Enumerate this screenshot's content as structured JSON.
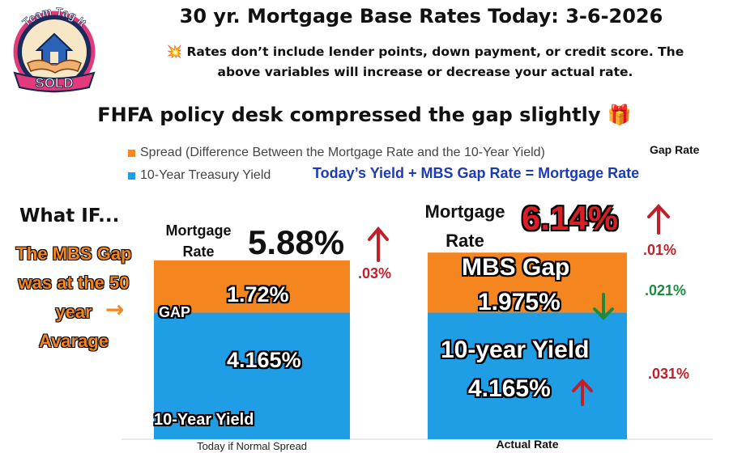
{
  "header": {
    "title": "30 yr. Mortgage Base Rates Today: 3-6-2026",
    "disclaimer_icon": "💥",
    "disclaimer_line1": "Rates don’t include lender points, down payment, or credit score. The",
    "disclaimer_line2": "above variables will increase or decrease your actual rate.",
    "subtitle": "FHFA policy desk compressed the gap slightly",
    "subtitle_icon": "🎁"
  },
  "logo": {
    "top_text": "Team Tag It",
    "banner_text": "SOLD"
  },
  "legend": {
    "spread_label": "Spread (Difference Between the Mortgage Rate and the 10-Year Yield)",
    "treasury_label": "10-Year Treasury Yield",
    "gap_rate_label": "Gap Rate",
    "formula": "Today’s  Yield +  MBS Gap Rate = Mortgage Rate"
  },
  "left_panel": {
    "what_if": "What IF...",
    "note_lines": [
      "The MBS Gap",
      "was at the 50",
      "year",
      "Avarage"
    ],
    "arrow": "→",
    "mortgage_rate_label_1": "Mortgage",
    "mortgage_rate_label_2": "Rate",
    "mortgage_rate_value": "5.88%",
    "change": ".03%",
    "gap_label": "GAP",
    "gap_value": "1.72%",
    "yield_value": "4.165%",
    "yield_label": "10-Year Yield",
    "x_label": "Today if Normal Spread"
  },
  "right_panel": {
    "mortgage_rate_label_1": "Mortgage",
    "mortgage_rate_label_2": "Rate",
    "mortgage_rate_value": "6.14%",
    "rate_change": ".01%",
    "gap_title": "MBS Gap",
    "gap_value": "1.975%",
    "gap_change": ".021%",
    "yield_title": "10-year Yield",
    "yield_value": "4.165%",
    "yield_change": ".031%",
    "x_label": "Actual Rate"
  },
  "colors": {
    "spread": "#f5861f",
    "treasury": "#1f9ee6",
    "accent_red": "#c0202a",
    "accent_green": "#1e8a3e",
    "formula_blue": "#1c3bb5"
  },
  "chart_data": {
    "type": "bar",
    "stacked": true,
    "categories": [
      "Today if Normal Spread",
      "Actual Rate"
    ],
    "series": [
      {
        "name": "10-Year Treasury Yield",
        "values": [
          4.165,
          4.165
        ]
      },
      {
        "name": "Spread (Difference Between the Mortgage Rate and the 10-Year Yield)",
        "values": [
          1.72,
          1.975
        ]
      }
    ],
    "totals": [
      5.88,
      6.14
    ],
    "ylim": [
      0,
      6.2
    ],
    "grid": false,
    "legend": "top"
  }
}
